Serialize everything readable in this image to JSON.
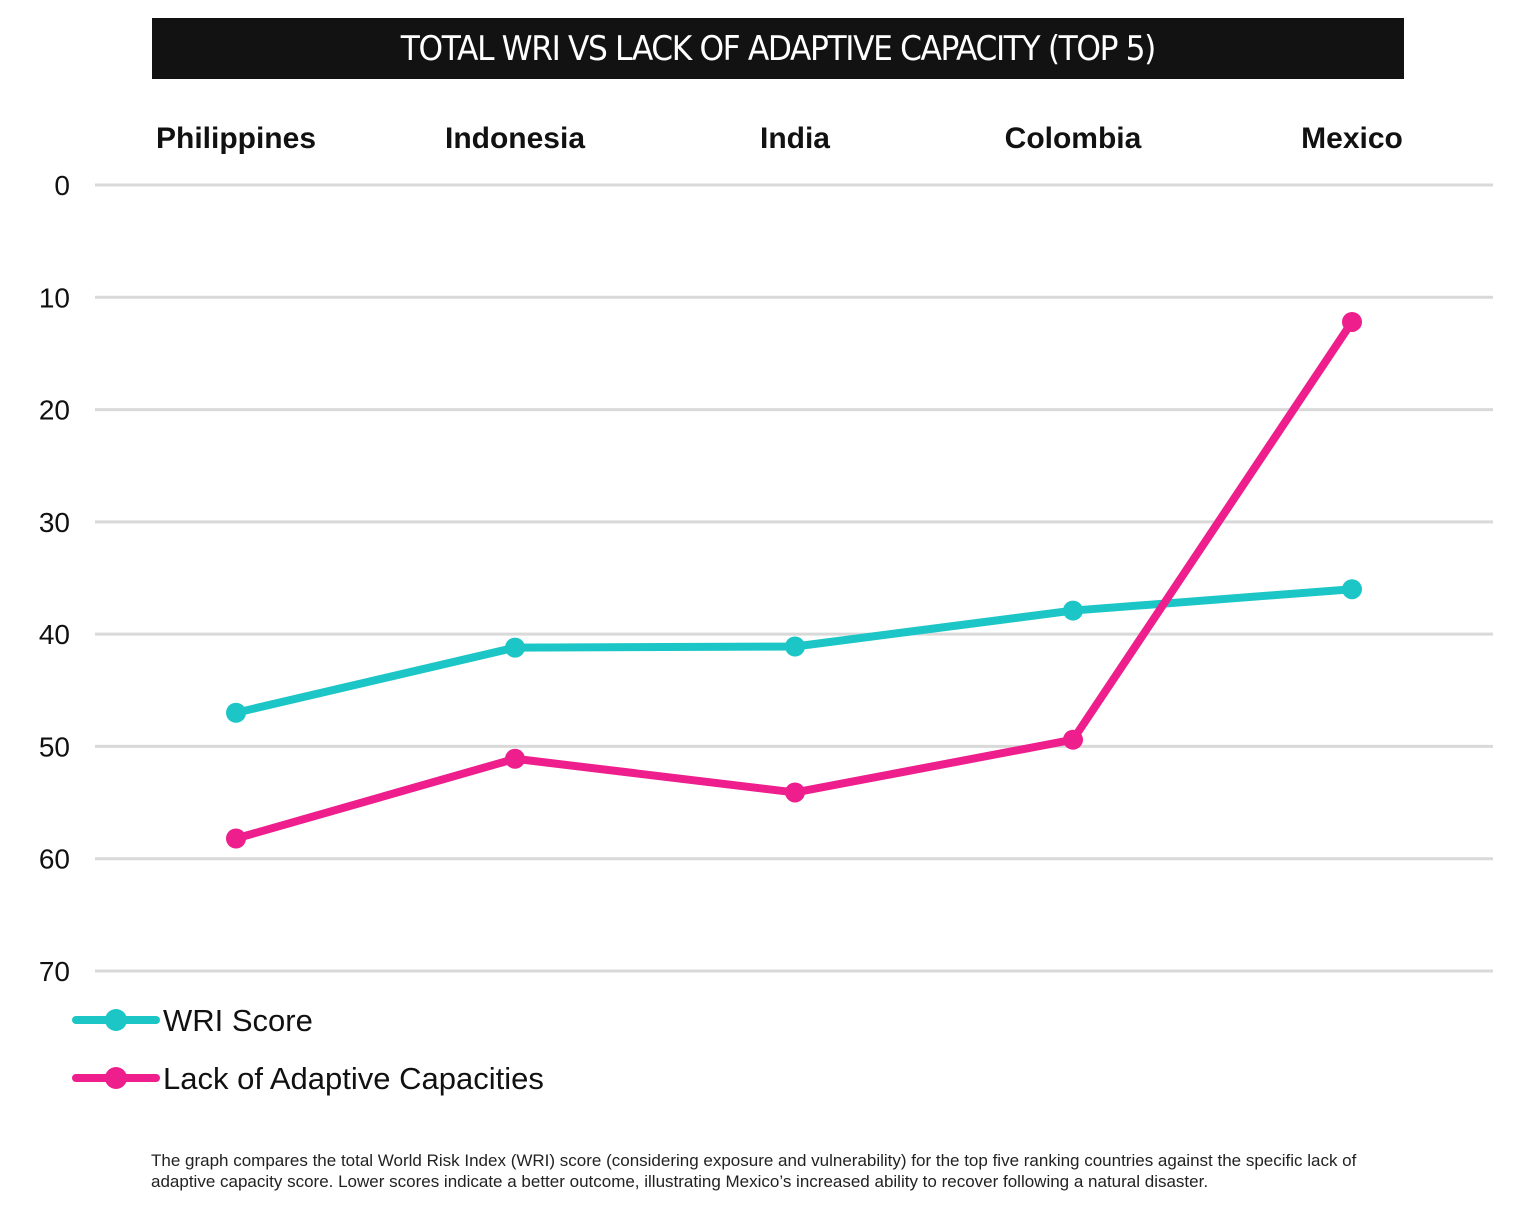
{
  "header": {
    "title": "TOTAL WRI VS LACK OF ADAPTIVE CAPACITY (TOP 5)"
  },
  "chart_data": {
    "type": "line",
    "title": "TOTAL WRI VS LACK OF ADAPTIVE CAPACITY (TOP 5)",
    "xlabel": "",
    "ylabel": "",
    "x_axis_position": "top",
    "y_axis_inverted": true,
    "categories": [
      "Philippines",
      "Indonesia",
      "India",
      "Colombia",
      "Mexico"
    ],
    "yticks": [
      0,
      10,
      20,
      30,
      40,
      50,
      60,
      70
    ],
    "ylim": [
      0,
      70
    ],
    "grid": true,
    "legend_position": "bottom-left",
    "series": [
      {
        "name": "WRI Score",
        "color": "#1CC6C6",
        "values": [
          47,
          41.2,
          41.1,
          37.9,
          36
        ]
      },
      {
        "name": "Lack of Adaptive Capacities",
        "color": "#EE1E8C",
        "values": [
          58.2,
          51.1,
          54.1,
          49.4,
          12.2
        ]
      }
    ]
  },
  "caption": {
    "text": "The graph compares the total World Risk Index (WRI) score (considering exposure and vulnerability) for the top five ranking countries against the specific lack of adaptive capacity score. Lower scores indicate a better outcome, illustrating Mexico’s increased ability to recover following a natural disaster."
  }
}
